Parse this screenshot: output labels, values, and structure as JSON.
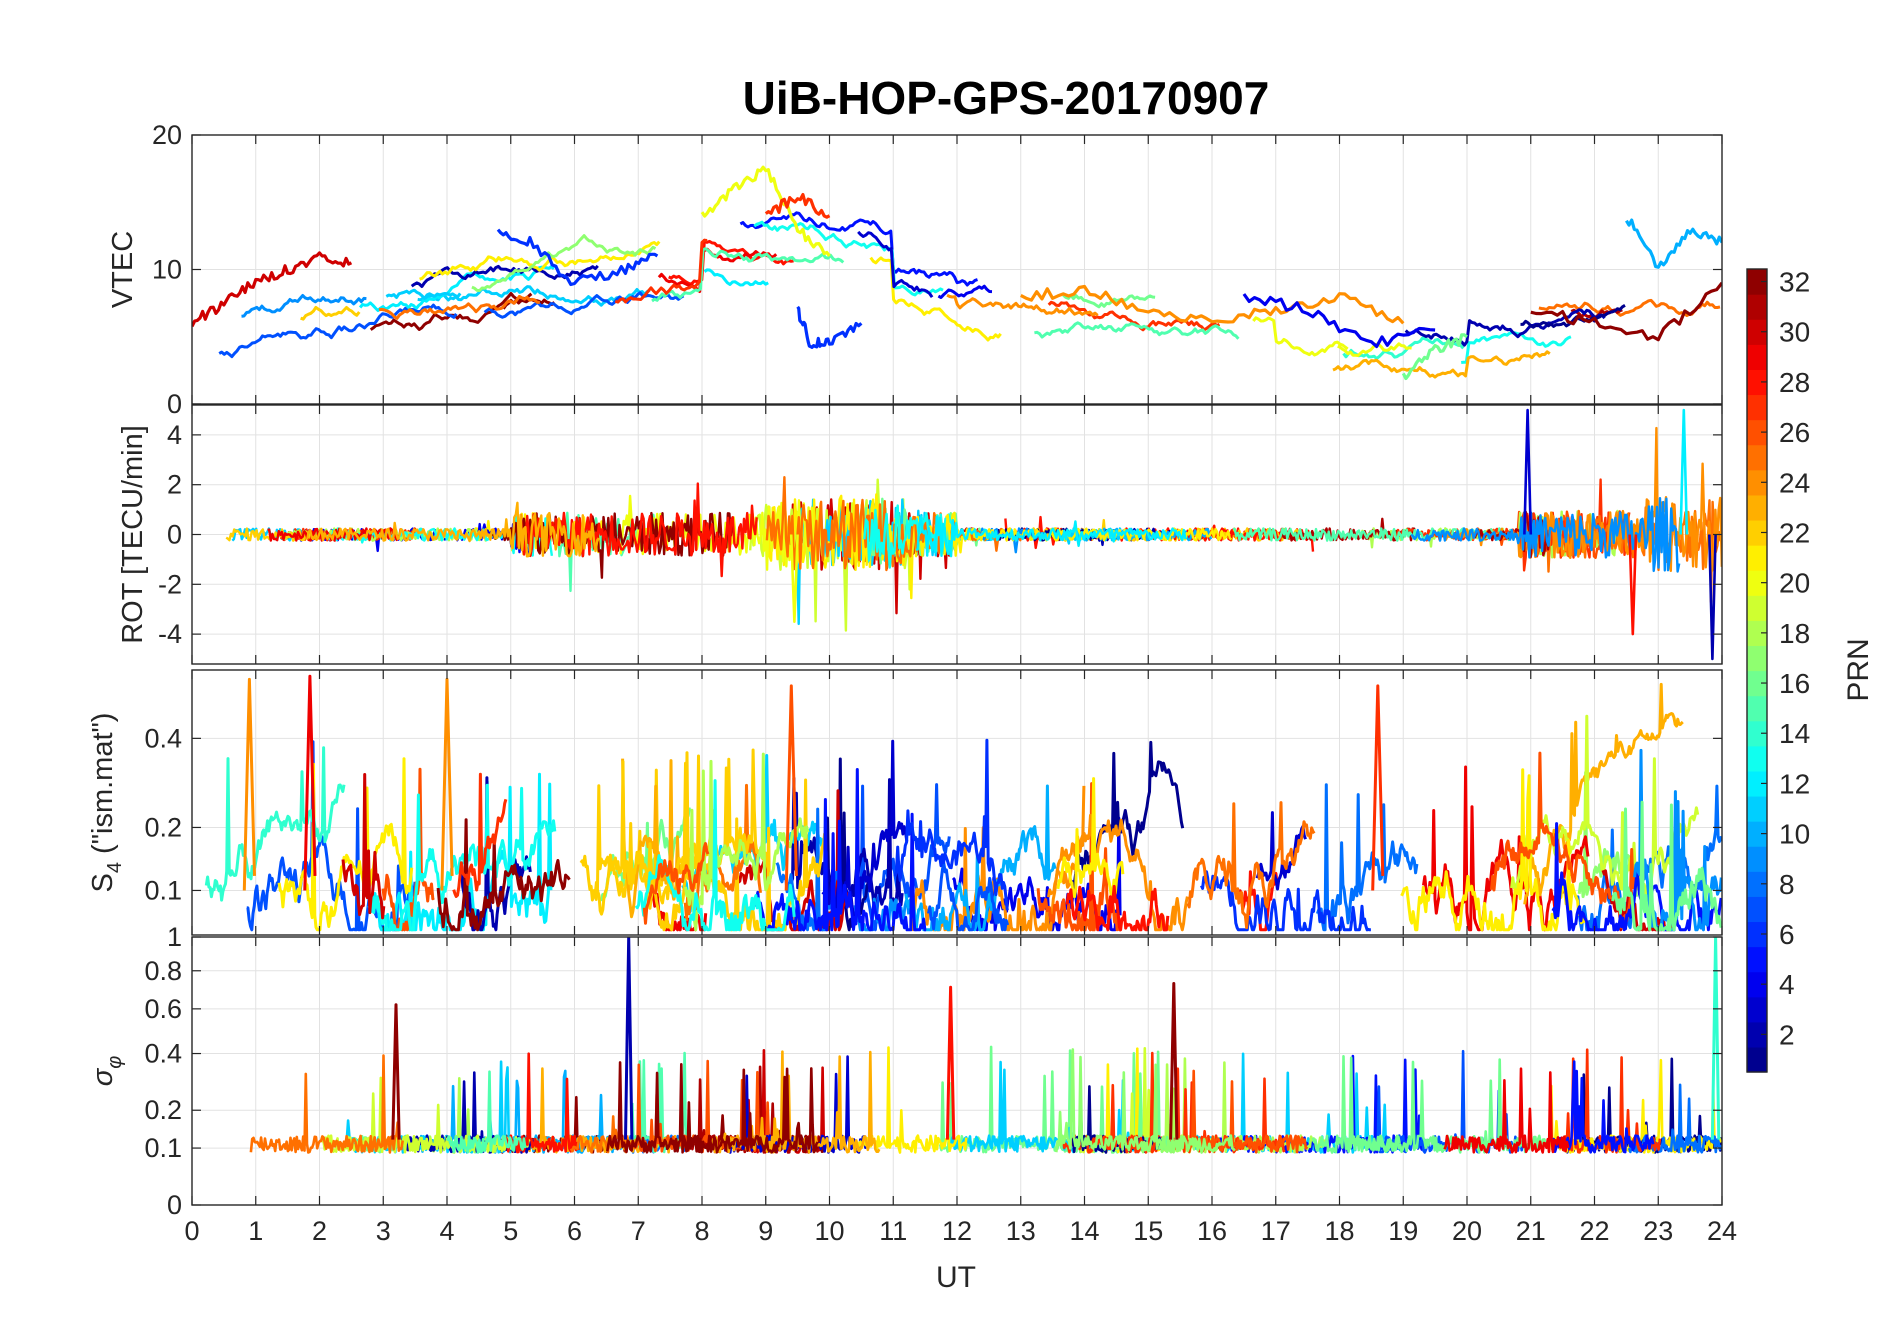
{
  "figure": {
    "title": "UiB-HOP-GPS-20170907",
    "xlabel": "UT",
    "x_ticks": [
      0,
      1,
      2,
      3,
      4,
      5,
      6,
      7,
      8,
      9,
      10,
      11,
      12,
      13,
      14,
      15,
      16,
      17,
      18,
      19,
      20,
      21,
      22,
      23,
      24
    ],
    "xlim": [
      0,
      24
    ]
  },
  "colorbar": {
    "label": "PRN",
    "range": [
      1,
      32
    ],
    "ticks": [
      2,
      4,
      6,
      8,
      10,
      12,
      14,
      16,
      18,
      20,
      22,
      24,
      26,
      28,
      30,
      32
    ],
    "colormap": "jet",
    "levels": 32
  },
  "chart_data": [
    {
      "type": "line",
      "panel": "VTEC",
      "ylabel": "VTEC",
      "ylim": [
        0,
        20
      ],
      "y_ticks": [
        0,
        10,
        20
      ],
      "grid": true,
      "series_by": "PRN",
      "series": [
        {
          "prn": 30,
          "x": [
            0,
            0.5,
            1,
            1.5,
            2,
            2.5
          ],
          "y": [
            6,
            7.5,
            9,
            10,
            11,
            10.5
          ]
        },
        {
          "prn": 6,
          "x": [
            4.8,
            5.3,
            6,
            6.8,
            7.3
          ],
          "y": [
            13,
            12,
            9,
            10,
            11
          ]
        },
        {
          "prn": 20,
          "x": [
            8,
            8.5,
            9,
            9.5,
            10
          ],
          "y": [
            14,
            16,
            17.5,
            13,
            11
          ]
        },
        {
          "prn": 27,
          "x": [
            9,
            9.5,
            10
          ],
          "y": [
            14,
            15.5,
            14
          ]
        },
        {
          "prn": 6,
          "x": [
            9.5,
            9.7,
            10,
            10.5
          ],
          "y": [
            7,
            4.5,
            4.5,
            6
          ]
        },
        {
          "prn": 24,
          "x": [
            13,
            14,
            15,
            16,
            17,
            18,
            19
          ],
          "y": [
            8,
            8.5,
            7,
            6,
            7,
            8,
            6
          ]
        },
        {
          "prn": 4,
          "x": [
            16.5,
            17.5,
            18.5,
            19.5
          ],
          "y": [
            8,
            7,
            4.5,
            5.5
          ]
        },
        {
          "prn": 16,
          "x": [
            19,
            19.5,
            20
          ],
          "y": [
            2,
            4,
            5
          ]
        },
        {
          "prn": 10,
          "x": [
            22.5,
            23,
            23.5,
            24
          ],
          "y": [
            14,
            10,
            13,
            12
          ]
        },
        {
          "prn": 32,
          "x": [
            21,
            22,
            23,
            24
          ],
          "y": [
            7,
            6,
            5,
            9
          ]
        }
      ]
    },
    {
      "type": "line",
      "panel": "ROT",
      "ylabel": "ROT [TECU/min]",
      "ylim": [
        -5.2,
        5.2
      ],
      "y_ticks": [
        -4,
        -2,
        0,
        2,
        4
      ],
      "grid": true,
      "series_by": "PRN",
      "notable_peaks": [
        {
          "prn": 3,
          "x": 20.95,
          "y": 5
        },
        {
          "prn": 20,
          "x": 9.45,
          "y": -3.5
        },
        {
          "prn": 28,
          "x": 22.6,
          "y": -4
        },
        {
          "prn": 12,
          "x": 23.4,
          "y": 5
        },
        {
          "prn": 2,
          "x": 23.85,
          "y": -5
        }
      ]
    },
    {
      "type": "line",
      "panel": "S4",
      "ylabel": "S4 (\"ism.mat\")",
      "ylabel_main": "S",
      "ylabel_sub": "4",
      "ylabel_rest": "  (\"ism.mat\")",
      "ylim": [
        0.05,
        0.6
      ],
      "y_ticks": [
        0.1,
        0.2,
        0.4
      ],
      "grid": true,
      "series_by": "PRN",
      "notable_peaks": [
        {
          "prn": 24,
          "x": 0.9,
          "y": 0.57
        },
        {
          "prn": 29,
          "x": 1.85,
          "y": 0.58
        },
        {
          "prn": 24,
          "x": 4.0,
          "y": 0.57
        },
        {
          "prn": 26,
          "x": 9.4,
          "y": 0.55
        },
        {
          "prn": 27,
          "x": 18.6,
          "y": 0.55
        }
      ]
    },
    {
      "type": "line",
      "panel": "sigma_phi",
      "ylabel": "σφ",
      "ylabel_main": "σ",
      "ylabel_sub": "φ",
      "ylim": [
        0,
        1
      ],
      "y_ticks": [
        0,
        0.1,
        0.2,
        0.4,
        0.6,
        0.8,
        1
      ],
      "grid": true,
      "series_by": "PRN",
      "notable_peaks": [
        {
          "prn": 32,
          "x": 3.2,
          "y": 0.62
        },
        {
          "prn": 2,
          "x": 6.85,
          "y": 1.0
        },
        {
          "prn": 28,
          "x": 11.9,
          "y": 0.71
        },
        {
          "prn": 32,
          "x": 15.4,
          "y": 0.73
        },
        {
          "prn": 14,
          "x": 23.9,
          "y": 1.0
        }
      ]
    }
  ]
}
